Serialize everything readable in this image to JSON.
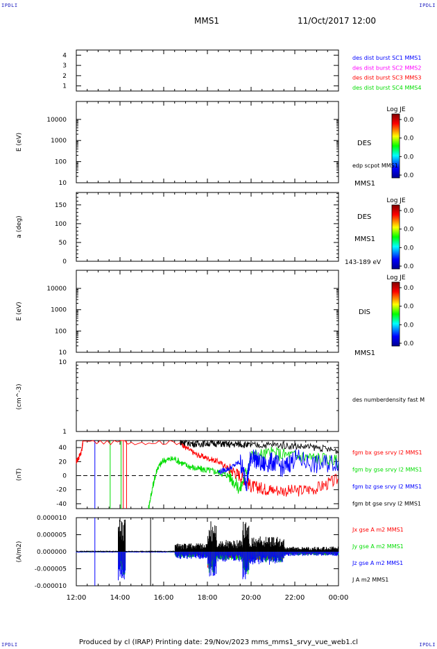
{
  "header": {
    "corner_tl": "IPDLI",
    "corner_tr": "IPDLI",
    "corner_bl": "IPDLI",
    "corner_br": "IPDLI",
    "mission": "MMS1",
    "date": "11/Oct/2017 12:00"
  },
  "footer": {
    "text": "Produced by cl (IRAP)   Printing date: 29/Nov/2023   mms_mms1_srvy_vue_web1.cl"
  },
  "colors": {
    "red": "#ff0000",
    "green": "#00dd00",
    "blue": "#0000ff",
    "magenta": "#ff00ff",
    "black": "#000000"
  },
  "chart_data": [
    {
      "type": "line",
      "panel": "burst",
      "ylim": [
        0.5,
        4.5
      ],
      "yticks": [
        "1",
        "2",
        "3",
        "4"
      ],
      "legend": [
        {
          "label": "des dist burst SC1 MMS1",
          "color": "#0000ff"
        },
        {
          "label": "des dist burst SC2 MMS2",
          "color": "#ff00ff"
        },
        {
          "label": "des dist burst SC3 MMS3",
          "color": "#ff0000"
        },
        {
          "label": "des dist burst SC4 MMS4",
          "color": "#00dd00"
        }
      ]
    },
    {
      "type": "heatmap",
      "panel": "des-energy",
      "ylabel": "E (eV)",
      "scale": "log",
      "yticks": [
        "10",
        "100",
        "1000",
        "10000"
      ],
      "right_labels": [
        "DES",
        "edp scpot MMS1",
        "MMS1"
      ],
      "colorbar": {
        "title": "Log JE",
        "ticks": [
          "0.0",
          "0.0",
          "0.0",
          "0.0"
        ]
      }
    },
    {
      "type": "heatmap",
      "panel": "des-pitch",
      "ylabel": "a (deg)",
      "ylim": [
        0,
        180
      ],
      "yticks": [
        "0",
        "50",
        "100",
        "150"
      ],
      "right_labels": [
        "DES",
        "MMS1",
        "143-189 eV"
      ],
      "colorbar": {
        "title": "Log JE",
        "ticks": [
          "0.0",
          "0.0",
          "0.0",
          "0.0"
        ]
      }
    },
    {
      "type": "heatmap",
      "panel": "dis-energy",
      "ylabel": "E (eV)",
      "scale": "log",
      "yticks": [
        "10",
        "100",
        "1000",
        "10000"
      ],
      "right_labels": [
        "DIS",
        "MMS1"
      ],
      "colorbar": {
        "title": "Log JE",
        "ticks": [
          "0.0",
          "0.0",
          "0.0",
          "0.0"
        ]
      }
    },
    {
      "type": "line",
      "panel": "density",
      "ylabel": "(cm^-3)",
      "scale": "log",
      "yticks": [
        "1",
        "10"
      ],
      "right_labels": [
        "des numberdensity fast M"
      ]
    },
    {
      "type": "line",
      "panel": "magnetic-field",
      "ylabel": "(nT)",
      "ylim": [
        -47,
        50
      ],
      "yticks": [
        "-40",
        "-20",
        "0",
        "20",
        "40"
      ],
      "series": [
        {
          "name": "fgm bx gse srvy l2 MMS1",
          "color": "#ff0000",
          "x": [
            12.0,
            12.1,
            12.25,
            12.3,
            16.75,
            17.0,
            17.5,
            18.0,
            18.5,
            19.0,
            19.5,
            20.0,
            20.5,
            21.0,
            22.0,
            23.0,
            24.0
          ],
          "y": [
            20,
            25,
            35,
            48,
            48,
            40,
            30,
            25,
            20,
            10,
            0,
            -15,
            -18,
            -20,
            -22,
            -18,
            -5
          ]
        },
        {
          "name": "fgm by gse srvy l2 MMS1",
          "color": "#00dd00",
          "x": [
            15.3,
            15.5,
            15.7,
            16.0,
            16.5,
            17.0,
            17.5,
            18.0,
            18.5,
            19.0,
            19.5,
            20.0,
            21.0,
            22.0,
            23.0,
            24.0
          ],
          "y": [
            -47,
            -15,
            10,
            22,
            24,
            15,
            10,
            8,
            5,
            0,
            -20,
            28,
            32,
            28,
            25,
            20
          ]
        },
        {
          "name": "fgm bz gse srvy l2 MMS1",
          "color": "#0000ff",
          "x": [
            18.5,
            19.0,
            19.5,
            19.8,
            20.0,
            20.5,
            21.0,
            21.5,
            22.0,
            23.0,
            24.0
          ],
          "y": [
            5,
            10,
            20,
            -10,
            30,
            15,
            20,
            10,
            25,
            15,
            20
          ]
        },
        {
          "name": "fgm bt gse srvy l2 MMS1",
          "color": "#000000",
          "x": [
            16.75,
            17.0,
            17.5,
            18.0,
            18.5,
            19.0,
            19.5,
            20.0,
            21.0,
            22.0,
            23.0,
            24.0
          ],
          "y": [
            48,
            47,
            45,
            46,
            46,
            44,
            45,
            43,
            44,
            42,
            40,
            35
          ]
        }
      ]
    },
    {
      "type": "line",
      "panel": "current-density",
      "ylabel": "(A/m2)",
      "ylim": [
        -1e-05,
        1e-05
      ],
      "yticks": [
        "-0.000010",
        "-0.000005",
        "0.000000",
        "0.000005",
        "0.000010"
      ],
      "xticks": [
        "12:00",
        "14:00",
        "16:00",
        "18:00",
        "20:00",
        "22:00",
        "00:00"
      ],
      "series": [
        {
          "name": "Jx gse A m2 MMS1",
          "color": "#ff0000"
        },
        {
          "name": "Jy gse A m2 MMS1",
          "color": "#00dd00"
        },
        {
          "name": "Jz gse A m2 MMS1",
          "color": "#0000ff"
        },
        {
          "name": "J A m2 MMS1",
          "color": "#000000"
        }
      ]
    }
  ]
}
